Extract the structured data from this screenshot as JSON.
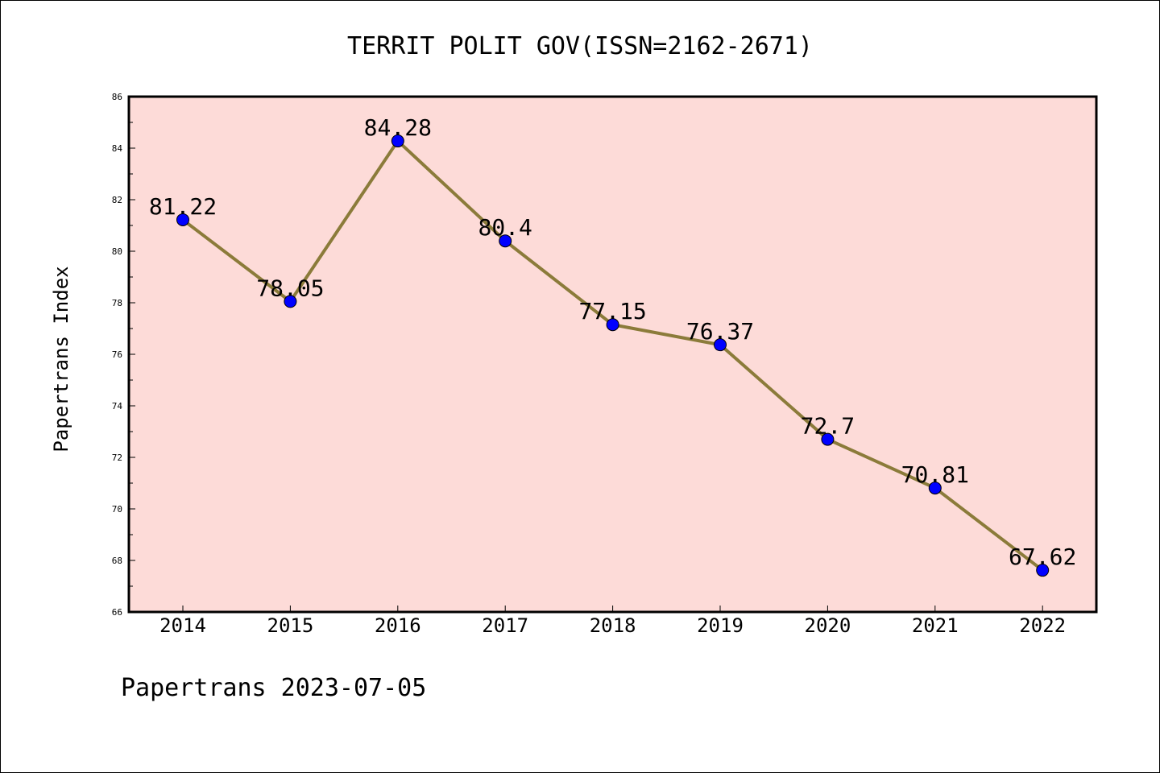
{
  "chart_data": {
    "type": "line",
    "title": "TERRIT POLIT GOV(ISSN=2162-2671)",
    "xlabel": "",
    "ylabel": "Papertrans Index",
    "categories": [
      "2014",
      "2015",
      "2016",
      "2017",
      "2018",
      "2019",
      "2020",
      "2021",
      "2022"
    ],
    "series": [
      {
        "values": [
          81.22,
          78.05,
          84.28,
          80.4,
          77.15,
          76.37,
          72.7,
          70.81,
          67.62
        ],
        "data_labels": [
          "81.22",
          "78.05",
          "84.28",
          "80.4",
          "77.15",
          "76.37",
          "72.7",
          "70.81",
          "67.62"
        ]
      }
    ],
    "ylim": [
      66,
      86
    ],
    "y_ticks": [
      "66",
      "68",
      "70",
      "72",
      "74",
      "76",
      "78",
      "80",
      "82",
      "84",
      "86"
    ],
    "grid": false,
    "legend": "none",
    "colors": {
      "plot_background": "#fddbd8",
      "line": "#8b7b3a",
      "marker": "#0000ff"
    }
  },
  "footer": "Papertrans 2023-07-05"
}
